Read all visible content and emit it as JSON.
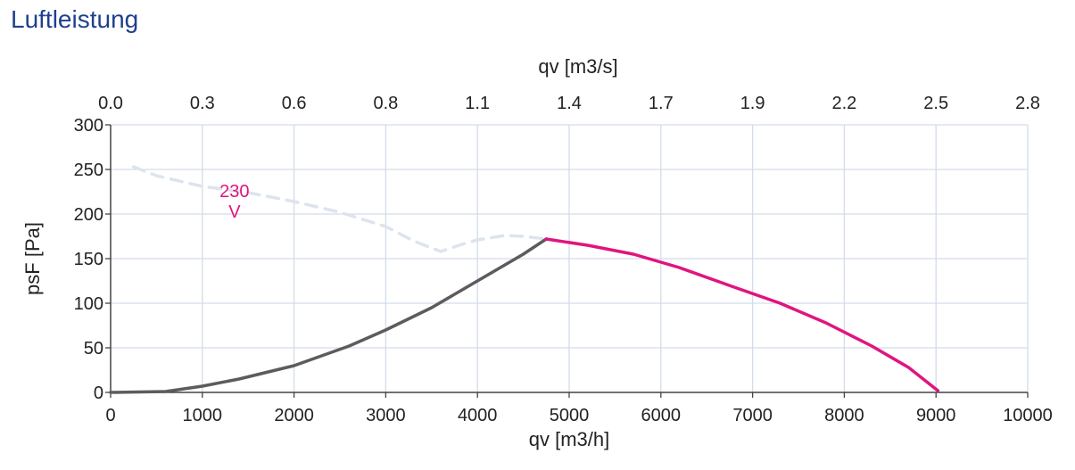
{
  "title": "Luftleistung",
  "chart_data": {
    "type": "line",
    "title": "",
    "xlabel": "qv [m3/h]",
    "x2label": "qv [m3/s]",
    "ylabel": "psF [Pa]",
    "xlim": [
      0,
      10000
    ],
    "ylim": [
      0,
      300
    ],
    "x_ticks": [
      "0",
      "1000",
      "2000",
      "3000",
      "4000",
      "5000",
      "6000",
      "7000",
      "8000",
      "9000",
      "10000"
    ],
    "x2_ticks": [
      "0.0",
      "0.3",
      "0.6",
      "0.8",
      "1.1",
      "1.4",
      "1.7",
      "1.9",
      "2.2",
      "2.5",
      "2.8"
    ],
    "y_ticks": [
      "0",
      "50",
      "100",
      "150",
      "200",
      "250",
      "300"
    ],
    "grid": true,
    "series": [
      {
        "name": "",
        "style": "dashed",
        "color": "#dde4ef",
        "x": [
          250,
          500,
          1000,
          1500,
          2000,
          2500,
          3000,
          3300,
          3600,
          3800,
          4000,
          4300,
          4500,
          4750
        ],
        "y": [
          253,
          243,
          231,
          224,
          214,
          202,
          186,
          170,
          158,
          165,
          171,
          176,
          175,
          172
        ]
      },
      {
        "name": "",
        "style": "solid",
        "color": "#5c5c5c",
        "x": [
          0,
          600,
          1000,
          1400,
          2000,
          2600,
          3000,
          3500,
          4000,
          4500,
          4750
        ],
        "y": [
          0,
          1,
          7,
          15,
          30,
          52,
          70,
          95,
          125,
          155,
          172
        ]
      },
      {
        "name": "",
        "style": "solid",
        "color": "#e0157f",
        "x": [
          4750,
          5200,
          5700,
          6200,
          6800,
          7300,
          7800,
          8300,
          8700,
          9020
        ],
        "y": [
          172,
          165,
          155,
          140,
          118,
          100,
          78,
          52,
          28,
          2
        ]
      }
    ],
    "annotations": [
      {
        "text": "230",
        "x": 4950,
        "y": 219
      },
      {
        "text": "V",
        "x": 4950,
        "y": 196
      }
    ]
  }
}
